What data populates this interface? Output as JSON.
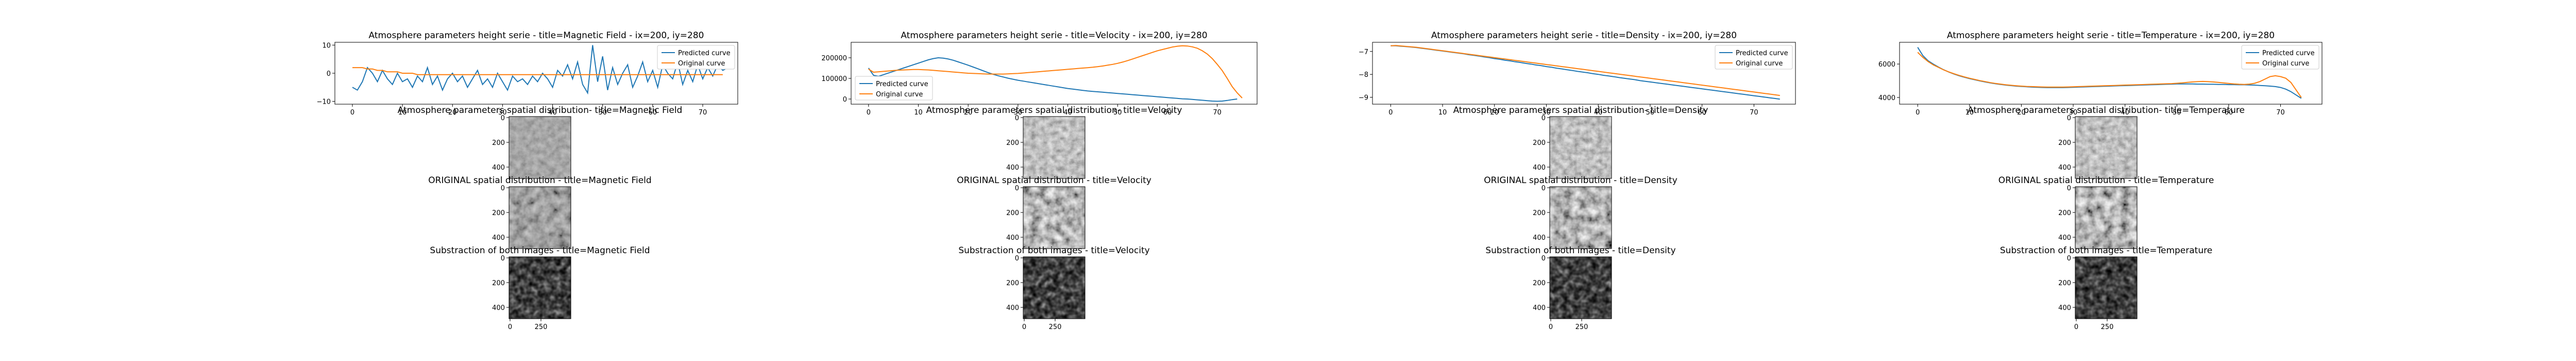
{
  "colors": {
    "predicted": "#1f77b4",
    "original": "#ff7f0e"
  },
  "chart_data": [
    {
      "type": "line",
      "title": "Atmosphere parameters height serie - title=Magnetic Field - ix=200, iy=280",
      "legend": "top-right",
      "xlim": [
        -3.5,
        77
      ],
      "ylim": [
        -11,
        11
      ],
      "xticks": [
        0,
        10,
        20,
        30,
        40,
        50,
        60,
        70
      ],
      "yticks": [
        -10,
        0,
        10
      ],
      "ytick_labels": [
        "−10",
        "0",
        "10"
      ],
      "series": [
        {
          "name": "Predicted curve",
          "color": "#1f77b4",
          "values": [
            -5,
            -6,
            -3,
            2,
            0,
            -3,
            1,
            -2,
            -4,
            0,
            -3,
            -2,
            -5,
            -1,
            -3,
            2,
            -4,
            -1,
            -6,
            -2,
            0,
            -3,
            -1,
            -5,
            -2,
            1,
            -4,
            -2,
            -5,
            0,
            -3,
            -6,
            -1,
            -3,
            -2,
            -4,
            -1,
            -3,
            0,
            -2,
            -5,
            1,
            -1,
            3,
            -2,
            4,
            -4,
            -7,
            10,
            -3,
            6,
            -6,
            2,
            -4,
            0,
            3,
            -5,
            -1,
            4,
            -3,
            1,
            -5,
            3,
            0,
            -2,
            4,
            -4,
            1,
            -3,
            3,
            -2,
            2,
            -1,
            3,
            1,
            2
          ]
        },
        {
          "name": "Original curve",
          "color": "#ff7f0e",
          "values": [
            2,
            2,
            2,
            1.5,
            1.5,
            1,
            1,
            0.5,
            0.5,
            0.5,
            0,
            0,
            0,
            -0.5,
            -0.5,
            -0.5,
            -0.5,
            -0.5,
            -0.5,
            -0.5,
            -0.5,
            -0.5,
            -0.5,
            -0.5,
            -0.5,
            -0.5,
            -0.5,
            -0.5,
            -0.5,
            -0.5,
            -0.5,
            -0.5,
            -0.5,
            -0.5,
            -0.5,
            -0.5,
            -0.5,
            -0.5,
            -0.5,
            -0.5,
            -0.5,
            -0.5,
            -0.5,
            -0.5,
            -0.5,
            -0.5,
            -0.5,
            -0.5,
            -0.5,
            -0.5,
            -0.5,
            -0.5,
            -0.5,
            -0.5,
            -0.5,
            -0.5,
            -0.5,
            -0.5,
            -0.5,
            -0.5,
            -0.5,
            -0.5,
            -0.5,
            -0.5,
            -0.5,
            -0.5,
            -0.5,
            -0.5,
            -0.5,
            -0.5,
            -0.5,
            -0.5,
            -0.5,
            -0.5,
            -0.5
          ]
        }
      ]
    },
    {
      "type": "line",
      "title": "Atmosphere parameters height serie - title=Velocity - ix=200, iy=280",
      "legend": "lower-left",
      "xlim": [
        -3.5,
        78
      ],
      "ylim": [
        -25000,
        275000
      ],
      "xticks": [
        0,
        10,
        20,
        30,
        40,
        50,
        60,
        70
      ],
      "yticks": [
        0,
        100000,
        200000
      ],
      "ytick_labels": [
        "0",
        "100000",
        "200000"
      ],
      "series": [
        {
          "name": "Predicted curve",
          "color": "#1f77b4",
          "values": [
            150000,
            115000,
            110000,
            118000,
            126000,
            134000,
            142000,
            150000,
            158000,
            166000,
            174000,
            182000,
            190000,
            196000,
            200000,
            198000,
            194000,
            188000,
            180000,
            172000,
            164000,
            155000,
            146000,
            137000,
            128000,
            120000,
            113000,
            107000,
            101000,
            96000,
            91000,
            87000,
            83000,
            79000,
            75000,
            71000,
            67000,
            63000,
            59000,
            55000,
            51000,
            48000,
            45000,
            42000,
            39000,
            37000,
            35000,
            33000,
            31000,
            29000,
            27000,
            25000,
            23000,
            21000,
            19000,
            17000,
            15000,
            13000,
            11000,
            9000,
            7000,
            5000,
            3000,
            1000,
            0,
            -2000,
            -4000,
            -6000,
            -8000,
            -10000,
            -11000,
            -10000,
            -7000,
            -3000,
            0
          ]
        },
        {
          "name": "Original curve",
          "color": "#ff7f0e",
          "values": [
            145000,
            130000,
            132000,
            134000,
            136000,
            138000,
            140000,
            141000,
            142000,
            143000,
            143000,
            142000,
            141000,
            139000,
            137000,
            135000,
            133000,
            131000,
            129000,
            127000,
            125000,
            124000,
            123000,
            122000,
            121000,
            121000,
            121000,
            121000,
            122000,
            123000,
            124000,
            126000,
            128000,
            130000,
            132000,
            134000,
            136000,
            138000,
            140000,
            142000,
            144000,
            146000,
            148000,
            150000,
            152000,
            154000,
            157000,
            160000,
            164000,
            168000,
            173000,
            179000,
            186000,
            194000,
            202000,
            210000,
            218000,
            226000,
            234000,
            240000,
            246000,
            252000,
            256000,
            258000,
            257000,
            253000,
            246000,
            234000,
            218000,
            196000,
            168000,
            138000,
            100000,
            60000,
            30000,
            5000
          ]
        }
      ]
    },
    {
      "type": "line",
      "title": "Atmosphere parameters height serie - title=Density - ix=200, iy=280",
      "legend": "top-right",
      "xlim": [
        -3.5,
        78
      ],
      "ylim": [
        -9.3,
        -6.6
      ],
      "xticks": [
        0,
        10,
        20,
        30,
        40,
        50,
        60,
        70
      ],
      "yticks": [
        -9,
        -8,
        -7
      ],
      "ytick_labels": [
        "−9",
        "−8",
        "−7"
      ],
      "series": [
        {
          "name": "Predicted curve",
          "color": "#1f77b4",
          "values": [
            -6.75,
            -6.75,
            -6.77,
            -6.79,
            -6.81,
            -6.83,
            -6.86,
            -6.89,
            -6.92,
            -6.95,
            -6.98,
            -7.01,
            -7.04,
            -7.07,
            -7.1,
            -7.14,
            -7.17,
            -7.2,
            -7.24,
            -7.27,
            -7.31,
            -7.34,
            -7.38,
            -7.41,
            -7.45,
            -7.48,
            -7.52,
            -7.55,
            -7.59,
            -7.62,
            -7.66,
            -7.69,
            -7.73,
            -7.76,
            -7.8,
            -7.83,
            -7.87,
            -7.9,
            -7.93,
            -7.97,
            -8.0,
            -8.04,
            -8.07,
            -8.1,
            -8.14,
            -8.17,
            -8.2,
            -8.23,
            -8.27,
            -8.3,
            -8.33,
            -8.36,
            -8.39,
            -8.42,
            -8.45,
            -8.48,
            -8.51,
            -8.54,
            -8.57,
            -8.6,
            -8.63,
            -8.66,
            -8.69,
            -8.72,
            -8.75,
            -8.78,
            -8.81,
            -8.84,
            -8.87,
            -8.9,
            -8.93,
            -8.96,
            -8.99,
            -9.02,
            -9.05,
            -9.08
          ]
        },
        {
          "name": "Original curve",
          "color": "#ff7f0e",
          "values": [
            -6.75,
            -6.74,
            -6.76,
            -6.78,
            -6.8,
            -6.82,
            -6.85,
            -6.88,
            -6.91,
            -6.94,
            -6.97,
            -7.0,
            -7.03,
            -7.06,
            -7.09,
            -7.12,
            -7.15,
            -7.18,
            -7.21,
            -7.24,
            -7.27,
            -7.3,
            -7.33,
            -7.36,
            -7.39,
            -7.42,
            -7.45,
            -7.48,
            -7.51,
            -7.54,
            -7.57,
            -7.6,
            -7.63,
            -7.66,
            -7.69,
            -7.72,
            -7.75,
            -7.78,
            -7.81,
            -7.84,
            -7.87,
            -7.9,
            -7.93,
            -7.96,
            -7.99,
            -8.02,
            -8.05,
            -8.08,
            -8.11,
            -8.14,
            -8.17,
            -8.2,
            -8.23,
            -8.26,
            -8.29,
            -8.32,
            -8.35,
            -8.38,
            -8.41,
            -8.44,
            -8.47,
            -8.5,
            -8.53,
            -8.56,
            -8.59,
            -8.62,
            -8.65,
            -8.68,
            -8.71,
            -8.74,
            -8.77,
            -8.8,
            -8.83,
            -8.86,
            -8.89,
            -8.92
          ]
        }
      ]
    },
    {
      "type": "line",
      "title": "Atmosphere parameters height serie - title=Temperature - ix=200, iy=280",
      "legend": "top-right",
      "xlim": [
        -3.5,
        78
      ],
      "ylim": [
        3600,
        7300
      ],
      "xticks": [
        0,
        10,
        20,
        30,
        40,
        50,
        60,
        70
      ],
      "yticks": [
        4000,
        6000
      ],
      "ytick_labels": [
        "4000",
        "6000"
      ],
      "series": [
        {
          "name": "Predicted curve",
          "color": "#1f77b4",
          "values": [
            7000,
            6500,
            6200,
            6000,
            5820,
            5660,
            5520,
            5400,
            5300,
            5210,
            5130,
            5060,
            4990,
            4930,
            4870,
            4820,
            4780,
            4740,
            4710,
            4680,
            4660,
            4640,
            4620,
            4610,
            4600,
            4590,
            4590,
            4590,
            4590,
            4600,
            4610,
            4620,
            4630,
            4640,
            4650,
            4660,
            4670,
            4680,
            4690,
            4700,
            4710,
            4720,
            4730,
            4740,
            4750,
            4760,
            4770,
            4780,
            4790,
            4800,
            4810,
            4810,
            4810,
            4810,
            4800,
            4800,
            4790,
            4790,
            4780,
            4780,
            4770,
            4770,
            4760,
            4760,
            4750,
            4740,
            4720,
            4700,
            4680,
            4650,
            4600,
            4500,
            4350,
            4150,
            3950
          ]
        },
        {
          "name": "Original curve",
          "color": "#ff7f0e",
          "values": [
            6700,
            6400,
            6150,
            5950,
            5800,
            5650,
            5530,
            5420,
            5320,
            5230,
            5150,
            5080,
            5010,
            4950,
            4890,
            4840,
            4800,
            4760,
            4730,
            4700,
            4680,
            4660,
            4650,
            4640,
            4630,
            4620,
            4620,
            4620,
            4620,
            4630,
            4640,
            4650,
            4660,
            4670,
            4680,
            4690,
            4700,
            4710,
            4720,
            4730,
            4740,
            4750,
            4760,
            4770,
            4780,
            4790,
            4800,
            4810,
            4820,
            4830,
            4850,
            4870,
            4900,
            4930,
            4950,
            4960,
            4950,
            4930,
            4900,
            4870,
            4840,
            4810,
            4790,
            4780,
            4800,
            4850,
            4950,
            5100,
            5250,
            5300,
            5250,
            5150,
            4900,
            4450,
            4000
          ]
        }
      ]
    }
  ],
  "image_rows": [
    {
      "prefix": "Atmosphere parameters spatial distribution- title="
    },
    {
      "prefix": "ORIGINAL spatial distribution - title="
    },
    {
      "prefix": "Substraction of both images - title="
    }
  ],
  "parameters": [
    "Magnetic Field",
    "Velocity",
    "Density",
    "Temperature"
  ],
  "image_yticks": [
    "0",
    "200",
    "400"
  ],
  "image_xticks": [
    "0",
    "250"
  ]
}
